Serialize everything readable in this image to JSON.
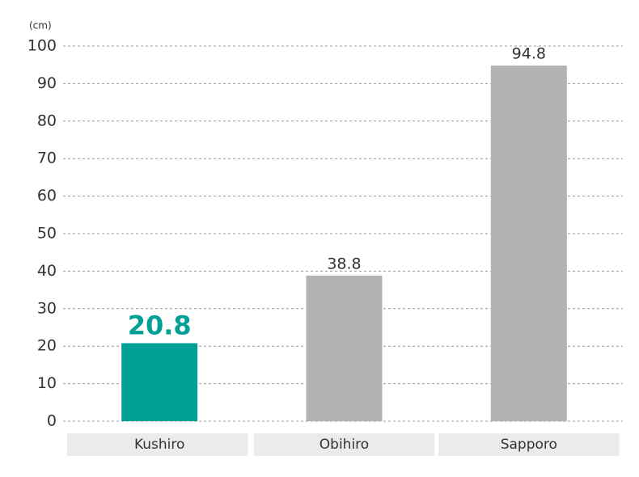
{
  "chart_data": {
    "type": "bar",
    "y_unit": "(cm)",
    "categories": [
      "Kushiro",
      "Obihiro",
      "Sapporo"
    ],
    "values": [
      20.8,
      38.8,
      94.8
    ],
    "colors": [
      "#00a096",
      "#b3b3b3",
      "#b3b3b3"
    ],
    "ylim": [
      0,
      100
    ],
    "yticks": [
      0,
      10,
      20,
      30,
      40,
      50,
      60,
      70,
      80,
      90,
      100
    ],
    "grid": true
  }
}
